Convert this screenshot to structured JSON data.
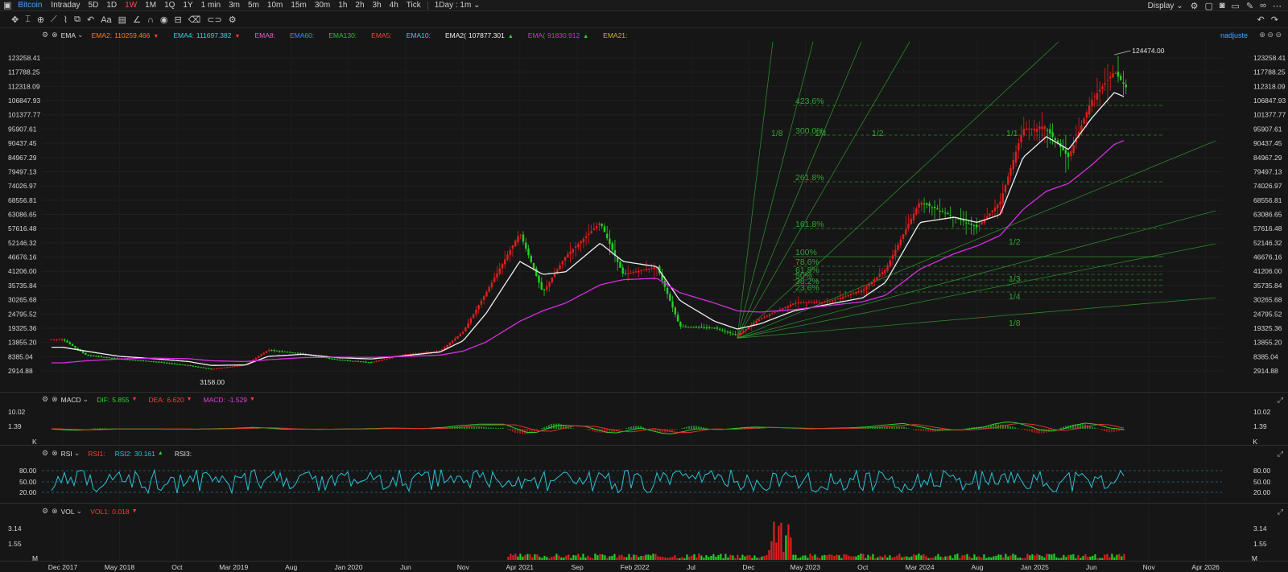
{
  "topbar": {
    "symbol": "Bitcoin",
    "timeframes": [
      "Intraday",
      "5D",
      "1D",
      "1W",
      "1M",
      "1Q",
      "1Y",
      "1 min",
      "3m",
      "5m",
      "10m",
      "15m",
      "30m",
      "1h",
      "2h",
      "3h",
      "4h",
      "Tick"
    ],
    "active_timeframe": "1W",
    "interval_select": "1Day : 1m",
    "display_label": "Display"
  },
  "toolbar": {
    "icons": [
      "move-icon",
      "cursor-icon",
      "crosshair-icon",
      "trendline-icon",
      "brush-icon",
      "shapes-icon",
      "undo-arrow-icon",
      "text-icon",
      "comment-icon",
      "ruler-icon",
      "magnet-icon",
      "eye-icon",
      "lock-icon",
      "trash-icon",
      "link-icon",
      "settings-icon"
    ],
    "undo_icon": "undo-icon",
    "redo_icon": "redo-icon"
  },
  "colors": {
    "up": "#e51d1d",
    "down": "#26d026",
    "ema_white": "#f0f0f0",
    "ema_magenta": "#d52ee0",
    "fib": "#2fa52f",
    "rsi": "#2bc1d6",
    "macd_dif": "#2ed12e",
    "macd_dea": "#e62f2f",
    "background": "#161616"
  },
  "ema_panel": {
    "name": "EMA",
    "items": [
      {
        "label": "EMA2:",
        "value": "110259.466",
        "color": "#ff7a1a",
        "arrow": "▼",
        "arrow_color": "#ff3b3b"
      },
      {
        "label": "EMA4:",
        "value": "111697.382",
        "color": "#2fd6e0",
        "arrow": "▼",
        "arrow_color": "#ff3b3b"
      },
      {
        "label": "EMA8:",
        "value": "",
        "color": "#ff55d0",
        "arrow": "",
        "arrow_color": ""
      },
      {
        "label": "EMA60:",
        "value": "",
        "color": "#3f8cff",
        "arrow": "",
        "arrow_color": ""
      },
      {
        "label": "EMA130:",
        "value": "",
        "color": "#2fbf2f",
        "arrow": "",
        "arrow_color": ""
      },
      {
        "label": "EMA5:",
        "value": "",
        "color": "#ff3b3b",
        "arrow": "",
        "arrow_color": ""
      },
      {
        "label": "EMA10:",
        "value": "",
        "color": "#2fd6e0",
        "arrow": "",
        "arrow_color": ""
      },
      {
        "label": "EMA2(",
        "value": "107877.301",
        "color": "#f0f0f0",
        "arrow": "▲",
        "arrow_color": "#2fd62f"
      },
      {
        "label": "EMA(",
        "value": "91830.912",
        "color": "#d52ee0",
        "arrow": "▲",
        "arrow_color": "#2fd62f"
      },
      {
        "label": "EMA21:",
        "value": "",
        "color": "#c9b62e",
        "arrow": "",
        "arrow_color": ""
      }
    ],
    "user_label": "nadjuste"
  },
  "macd_panel": {
    "name": "MACD",
    "dif_label": "DIF:",
    "dif_value": "5.855",
    "dif_arrow": "▼",
    "dea_label": "DEA:",
    "dea_value": "6.620",
    "dea_arrow": "▼",
    "macd_label": "MACD:",
    "macd_value": "-1.529",
    "macd_arrow": "▼",
    "unit": "K"
  },
  "rsi_panel": {
    "name": "RSI",
    "rsi1_label": "RSI1:",
    "rsi2_label": "RSI2:",
    "rsi2_value": "30.161",
    "rsi2_arrow": "▲",
    "rsi3_label": "RSI3:"
  },
  "vol_panel": {
    "name": "VOL",
    "vol1_label": "VOL1:",
    "vol1_value": "0.018",
    "vol1_arrow": "▼",
    "unit": "M"
  },
  "chart_data": [
    {
      "type": "candlestick",
      "title": "Bitcoin",
      "y_ticks": [
        "123258.41",
        "117788.25",
        "112318.09",
        "106847.93",
        "101377.77",
        "95907.61",
        "90437.45",
        "84967.29",
        "79497.13",
        "74026.97",
        "68556.81",
        "63086.65",
        "57616.48",
        "52146.32",
        "46676.16",
        "41206.00",
        "35735.84",
        "30265.68",
        "24795.52",
        "19325.36",
        "13855.20",
        "8385.04",
        "2914.88"
      ],
      "x_ticks": [
        "Dec 2017",
        "May 2018",
        "Oct",
        "Mar 2019",
        "Aug",
        "Jan 2020",
        "Jun",
        "Nov",
        "Apr 2021",
        "Sep",
        "Feb 2022",
        "Jul",
        "Dec",
        "May 2023",
        "Oct",
        "Mar 2024",
        "Aug",
        "Jan 2025",
        "Jun",
        "Nov",
        "Apr 2026"
      ],
      "annotations": {
        "high_label": "124474.00",
        "low_label": "3158.00"
      },
      "price_series": {
        "dates": [
          "2017-12",
          "2018-02",
          "2018-05",
          "2018-08",
          "2018-11",
          "2019-01",
          "2019-04",
          "2019-06",
          "2019-09",
          "2019-12",
          "2020-03",
          "2020-06",
          "2020-09",
          "2020-11",
          "2021-01",
          "2021-04",
          "2021-06",
          "2021-08",
          "2021-11",
          "2022-01",
          "2022-04",
          "2022-06",
          "2022-09",
          "2022-11",
          "2023-01",
          "2023-04",
          "2023-07",
          "2023-10",
          "2023-12",
          "2024-03",
          "2024-06",
          "2024-08",
          "2024-10",
          "2024-12",
          "2025-02",
          "2025-04",
          "2025-06",
          "2025-08",
          "2025-09"
        ],
        "close": [
          15000,
          9000,
          7500,
          6500,
          5000,
          3600,
          5200,
          11000,
          9500,
          7200,
          6200,
          9300,
          10600,
          18000,
          33000,
          56000,
          33000,
          47000,
          60000,
          40000,
          43000,
          20000,
          19500,
          16500,
          23000,
          29000,
          29500,
          34000,
          42000,
          68000,
          62000,
          58000,
          68000,
          96000,
          96000,
          85000,
          107000,
          118000,
          112000
        ]
      },
      "ema_series": [
        {
          "name": "EMA2(",
          "values": [
            12000,
            10500,
            8500,
            7600,
            6500,
            5000,
            5200,
            8500,
            9300,
            8000,
            7500,
            8800,
            10200,
            14500,
            25000,
            45000,
            40000,
            41000,
            52000,
            45000,
            43000,
            30000,
            22000,
            19000,
            21000,
            26000,
            28500,
            31000,
            37000,
            60000,
            62000,
            60000,
            63000,
            85000,
            93000,
            88000,
            100000,
            110000,
            108000
          ]
        },
        {
          "name": "EMA(",
          "values": [
            6000,
            6800,
            7500,
            7800,
            7600,
            6800,
            6500,
            7200,
            8000,
            8200,
            8100,
            8500,
            9000,
            10500,
            14000,
            22000,
            26000,
            29000,
            36000,
            38000,
            38500,
            33000,
            29000,
            26000,
            25500,
            26500,
            28000,
            29500,
            32000,
            42000,
            48000,
            51000,
            55000,
            65000,
            72000,
            75000,
            82000,
            90000,
            91800
          ]
        }
      ]
    },
    {
      "type": "line",
      "title": "MACD",
      "y_ticks": [
        "10.02",
        "1.39"
      ],
      "series": [
        {
          "name": "DIF:"
        },
        {
          "name": "DEA:"
        },
        {
          "name": "MACD:"
        }
      ]
    },
    {
      "type": "line",
      "title": "RSI",
      "y_ticks": [
        "80.00",
        "50.00",
        "20.00"
      ],
      "series": [
        {
          "name": "RSI2:"
        }
      ]
    },
    {
      "type": "bar",
      "title": "VOL",
      "y_ticks": [
        "3.14",
        "1.55"
      ]
    }
  ],
  "fib_labels": [
    "423.6%",
    "300.0%",
    "261.8%",
    "161.8%",
    "100%",
    "78.6%",
    "61.8%",
    "50%",
    "38.2%",
    "23.6%"
  ],
  "gann_labels": [
    "1/8",
    "1/4",
    "1/3",
    "1/2",
    "1/1",
    "1/2",
    "1/3",
    "1/4",
    "1/8"
  ]
}
